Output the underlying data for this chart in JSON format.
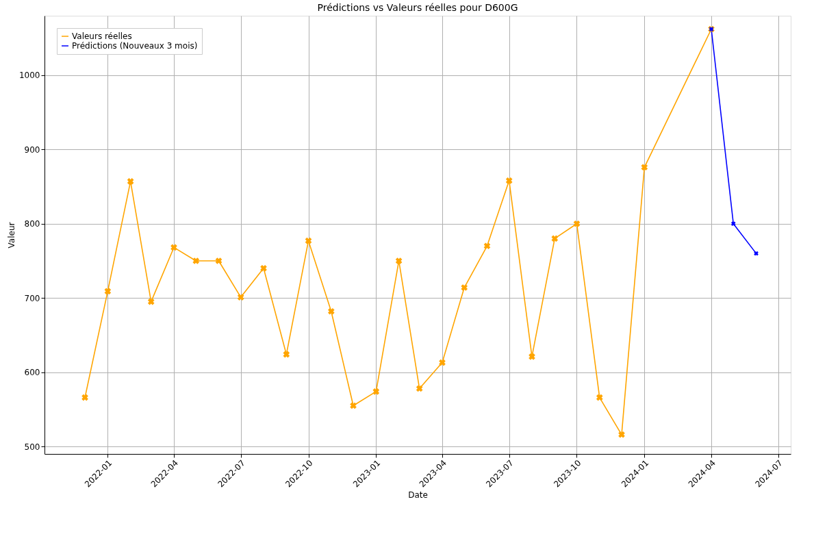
{
  "chart_data": {
    "type": "line",
    "title": "Prédictions vs Valeurs réelles pour D600G",
    "xlabel": "Date",
    "ylabel": "Valeur",
    "series": [
      {
        "name": "Valeurs réelles",
        "color": "#ffa500",
        "x": [
          "2021-12",
          "2022-01",
          "2022-02",
          "2022-03",
          "2022-04",
          "2022-05",
          "2022-06",
          "2022-07",
          "2022-08",
          "2022-09",
          "2022-10",
          "2022-11",
          "2022-12",
          "2023-01",
          "2023-02",
          "2023-03",
          "2023-04",
          "2023-05",
          "2023-06",
          "2023-07",
          "2023-08",
          "2023-09",
          "2023-10",
          "2023-11",
          "2023-12",
          "2024-01",
          "2024-04"
        ],
        "values": [
          566,
          709,
          857,
          695,
          768,
          750,
          750,
          701,
          740,
          624,
          777,
          682,
          555,
          574,
          750,
          578,
          613,
          714,
          770,
          858,
          621,
          780,
          800,
          566,
          516,
          876,
          1062
        ]
      },
      {
        "name": "Prédictions (Nouveaux 3 mois)",
        "color": "#0000ff",
        "x": [
          "2024-04",
          "2024-05",
          "2024-06"
        ],
        "values": [
          1062,
          800,
          760
        ]
      }
    ],
    "xlim": [
      "2021-10-07",
      "2024-07-18"
    ],
    "xticks": [
      "2022-01",
      "2022-04",
      "2022-07",
      "2022-10",
      "2023-01",
      "2023-04",
      "2023-07",
      "2023-10",
      "2024-01",
      "2024-04",
      "2024-07"
    ],
    "ylim": [
      490,
      1080
    ],
    "yticks": [
      500,
      600,
      700,
      800,
      900,
      1000
    ],
    "grid": true,
    "legend": "top left",
    "marker": "cross",
    "line_style": "solid"
  }
}
